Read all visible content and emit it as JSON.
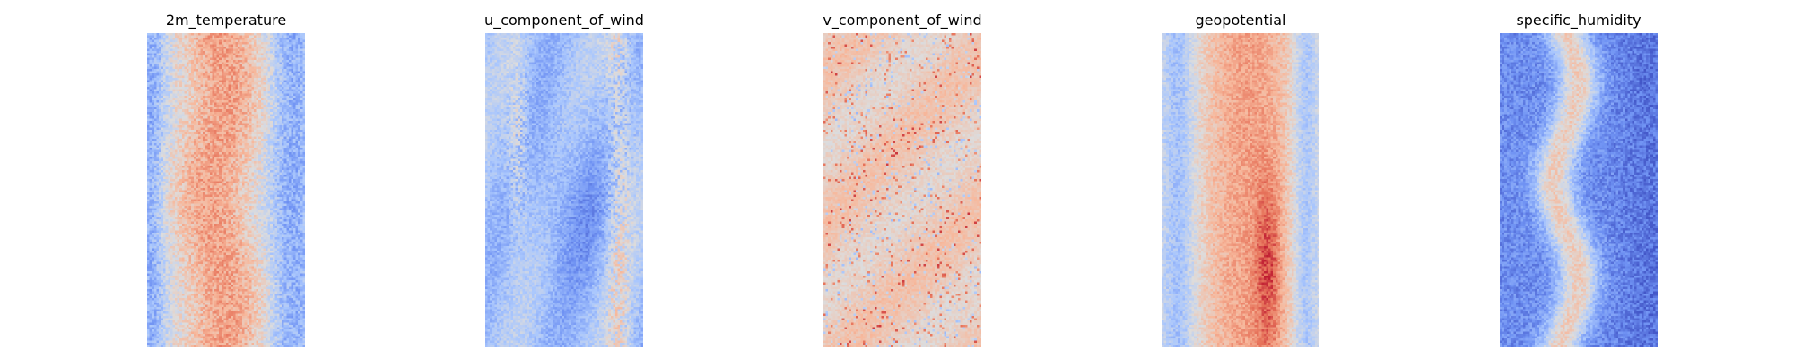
{
  "figure": {
    "background": "#ffffff",
    "colormap": "coolwarm",
    "colormap_stops": [
      "#3b4cc0",
      "#6f92f3",
      "#aac7fd",
      "#dddcdc",
      "#f7b89c",
      "#e7745b",
      "#b40426"
    ]
  },
  "chart_data": [
    {
      "type": "heatmap",
      "title": "2m_temperature",
      "grid": false,
      "axes_visible": false,
      "pattern": "warm central band, cooler edges with scattered blue cells, dark red speckles in the middle"
    },
    {
      "type": "heatmap",
      "title": "u_component_of_wind",
      "grid": false,
      "axes_visible": false,
      "pattern": "mostly pale blue field with scattered orange-red streaks near the edges, darker blue patches in the centre"
    },
    {
      "type": "heatmap",
      "title": "v_component_of_wind",
      "grid": false,
      "axes_visible": false,
      "pattern": "mostly light salmon field with scattered dark red and pale blue spots"
    },
    {
      "type": "heatmap",
      "title": "geopotential",
      "grid": false,
      "axes_visible": false,
      "pattern": "salmon-red central band, blue-tinted edges, dark red streaks in the lower middle"
    },
    {
      "type": "heatmap",
      "title": "specific_humidity",
      "grid": false,
      "axes_visible": false,
      "pattern": "mostly blue field with a wavy warm orange-red vertical band in the middle"
    }
  ]
}
